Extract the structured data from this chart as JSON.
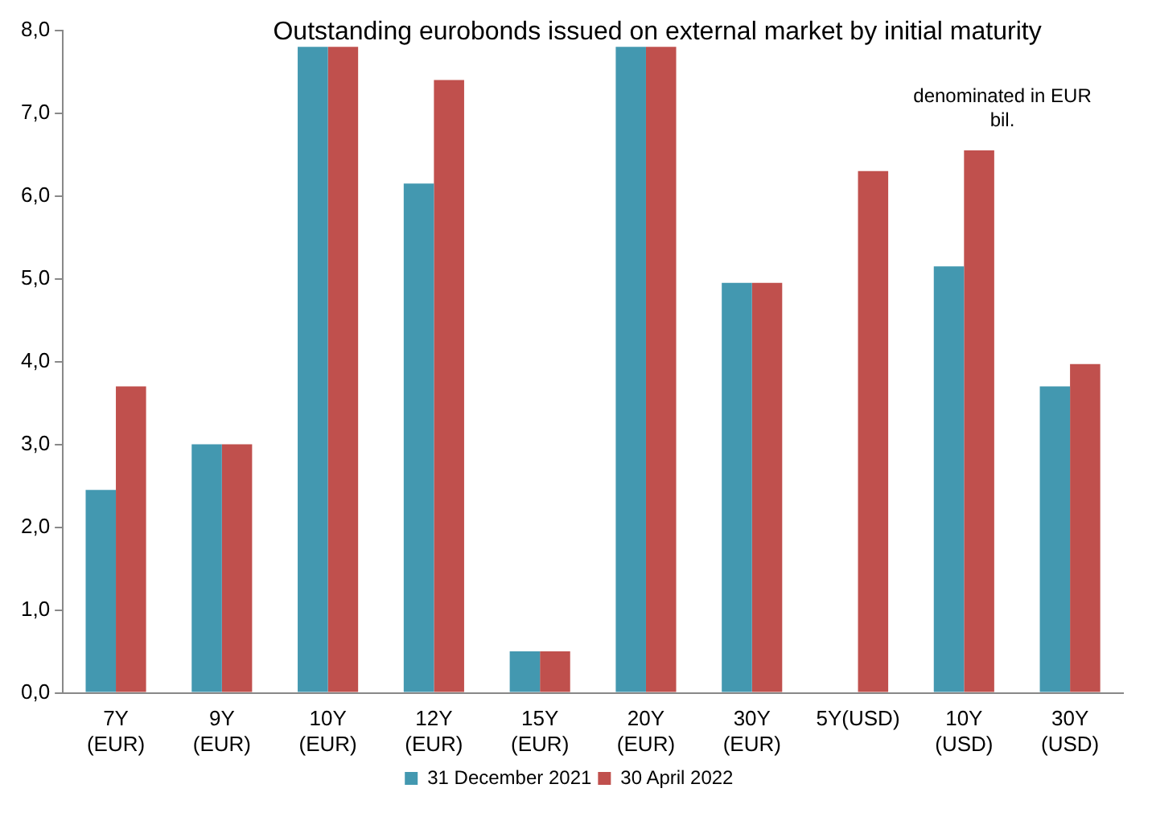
{
  "chart_data": {
    "type": "bar",
    "title": "Outstanding eurobonds issued on external market by initial maturity",
    "categories": [
      "7Y (EUR)",
      "9Y (EUR)",
      "10Y (EUR)",
      "12Y (EUR)",
      "15Y (EUR)",
      "20Y (EUR)",
      "30Y (EUR)",
      "5Y(USD)",
      "10Y (USD)",
      "30Y (USD)"
    ],
    "series": [
      {
        "name": "31 December 2021",
        "color": "#4398b0",
        "values": [
          2.45,
          3.0,
          7.8,
          6.15,
          0.5,
          7.8,
          4.95,
          null,
          5.15,
          3.7
        ]
      },
      {
        "name": "30 April 2022",
        "color": "#c0504d",
        "values": [
          3.7,
          3.0,
          7.8,
          7.4,
          0.5,
          7.8,
          4.95,
          6.3,
          6.55,
          3.97
        ]
      }
    ],
    "ylim": [
      0,
      8
    ],
    "yticks": [
      {
        "value": 0,
        "label": "0,0"
      },
      {
        "value": 1,
        "label": "1,0"
      },
      {
        "value": 2,
        "label": "2,0"
      },
      {
        "value": 3,
        "label": "3,0"
      },
      {
        "value": 4,
        "label": "4,0"
      },
      {
        "value": 5,
        "label": "5,0"
      },
      {
        "value": 6,
        "label": "6,0"
      },
      {
        "value": 7,
        "label": "7,0"
      },
      {
        "value": 8,
        "label": "8,0"
      }
    ],
    "annotations": [
      "denominated in EUR bil."
    ],
    "grid": false,
    "legend": "bottom"
  }
}
